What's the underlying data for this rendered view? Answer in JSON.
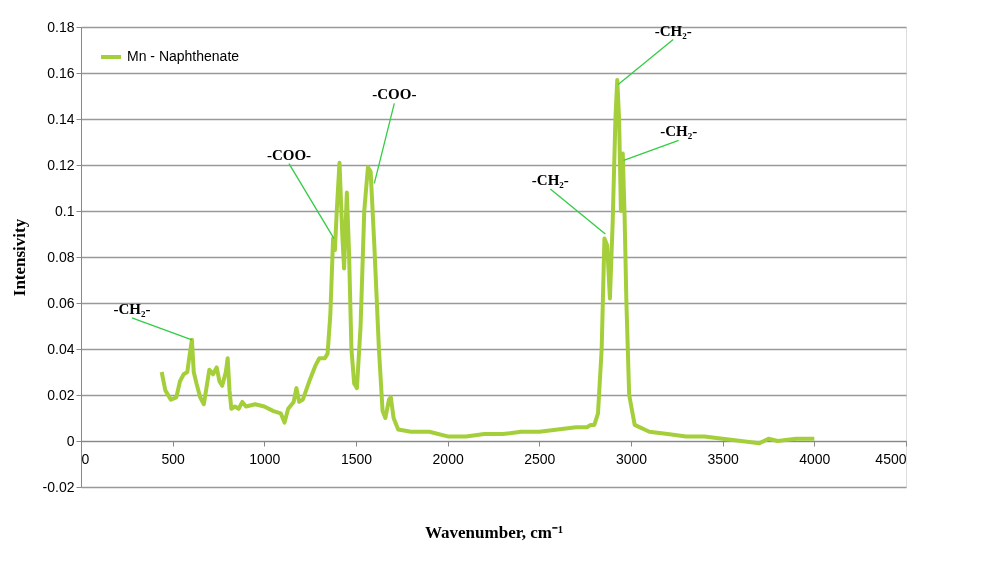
{
  "chart_data": {
    "type": "line",
    "xlabel": "Wavenumber, cm⁻¹",
    "ylabel": "Intensivity",
    "xlim": [
      0,
      4500
    ],
    "xticks": [
      0,
      500,
      1000,
      1500,
      2000,
      2500,
      3000,
      3500,
      4000,
      4500
    ],
    "ylim": [
      -0.02,
      0.18
    ],
    "yticks": [
      -0.02,
      0,
      0.02,
      0.04,
      0.06,
      0.08,
      0.1,
      0.12,
      0.14,
      0.16,
      0.18
    ],
    "grid": "y",
    "legend": "top left",
    "x": [
      440,
      460,
      490,
      520,
      540,
      560,
      580,
      590,
      605,
      615,
      630,
      650,
      670,
      690,
      700,
      720,
      740,
      755,
      770,
      790,
      800,
      810,
      820,
      840,
      860,
      880,
      900,
      950,
      1000,
      1050,
      1090,
      1110,
      1130,
      1160,
      1175,
      1190,
      1210,
      1250,
      1280,
      1300,
      1330,
      1345,
      1360,
      1375,
      1385,
      1395,
      1410,
      1425,
      1435,
      1450,
      1462,
      1475,
      1490,
      1505,
      1525,
      1545,
      1565,
      1580,
      1600,
      1625,
      1645,
      1660,
      1680,
      1690,
      1705,
      1730,
      1800,
      1900,
      2000,
      2100,
      2200,
      2300,
      2400,
      2500,
      2600,
      2700,
      2760,
      2780,
      2800,
      2820,
      2840,
      2855,
      2870,
      2885,
      2900,
      2915,
      2925,
      2935,
      2945,
      2955,
      2965,
      2975,
      2990,
      3020,
      3100,
      3200,
      3300,
      3400,
      3500,
      3600,
      3700,
      3750,
      3800,
      3900,
      4000
    ],
    "series": [
      {
        "name": "Mn - Naphthenate",
        "color": "#a4cf3a",
        "values": [
          0.03,
          0.022,
          0.018,
          0.019,
          0.026,
          0.029,
          0.03,
          0.036,
          0.044,
          0.03,
          0.025,
          0.019,
          0.016,
          0.026,
          0.031,
          0.029,
          0.032,
          0.026,
          0.024,
          0.03,
          0.036,
          0.022,
          0.014,
          0.015,
          0.014,
          0.017,
          0.015,
          0.016,
          0.015,
          0.013,
          0.012,
          0.008,
          0.014,
          0.017,
          0.023,
          0.017,
          0.018,
          0.027,
          0.033,
          0.036,
          0.036,
          0.038,
          0.055,
          0.088,
          0.083,
          0.1,
          0.121,
          0.09,
          0.075,
          0.108,
          0.082,
          0.04,
          0.025,
          0.023,
          0.05,
          0.1,
          0.119,
          0.117,
          0.085,
          0.04,
          0.013,
          0.01,
          0.018,
          0.019,
          0.01,
          0.005,
          0.004,
          0.004,
          0.002,
          0.002,
          0.003,
          0.003,
          0.004,
          0.004,
          0.005,
          0.006,
          0.006,
          0.007,
          0.007,
          0.012,
          0.04,
          0.088,
          0.085,
          0.062,
          0.095,
          0.14,
          0.157,
          0.14,
          0.1,
          0.125,
          0.098,
          0.06,
          0.02,
          0.007,
          0.004,
          0.003,
          0.002,
          0.002,
          0.001,
          0.0,
          -0.001,
          0.001,
          0.0,
          0.001,
          0.001
        ]
      }
    ],
    "annotations": [
      {
        "text": "-CH₂-",
        "x": 605,
        "y": 0.044
      },
      {
        "text": "-COO-",
        "x": 1380,
        "y": 0.088
      },
      {
        "text": "-COO-",
        "x": 1600,
        "y": 0.112
      },
      {
        "text": "-CH₂-",
        "x": 2860,
        "y": 0.09
      },
      {
        "text": "-CH₂-",
        "x": 2930,
        "y": 0.155
      },
      {
        "text": "-CH₂-",
        "x": 2960,
        "y": 0.122
      }
    ]
  }
}
